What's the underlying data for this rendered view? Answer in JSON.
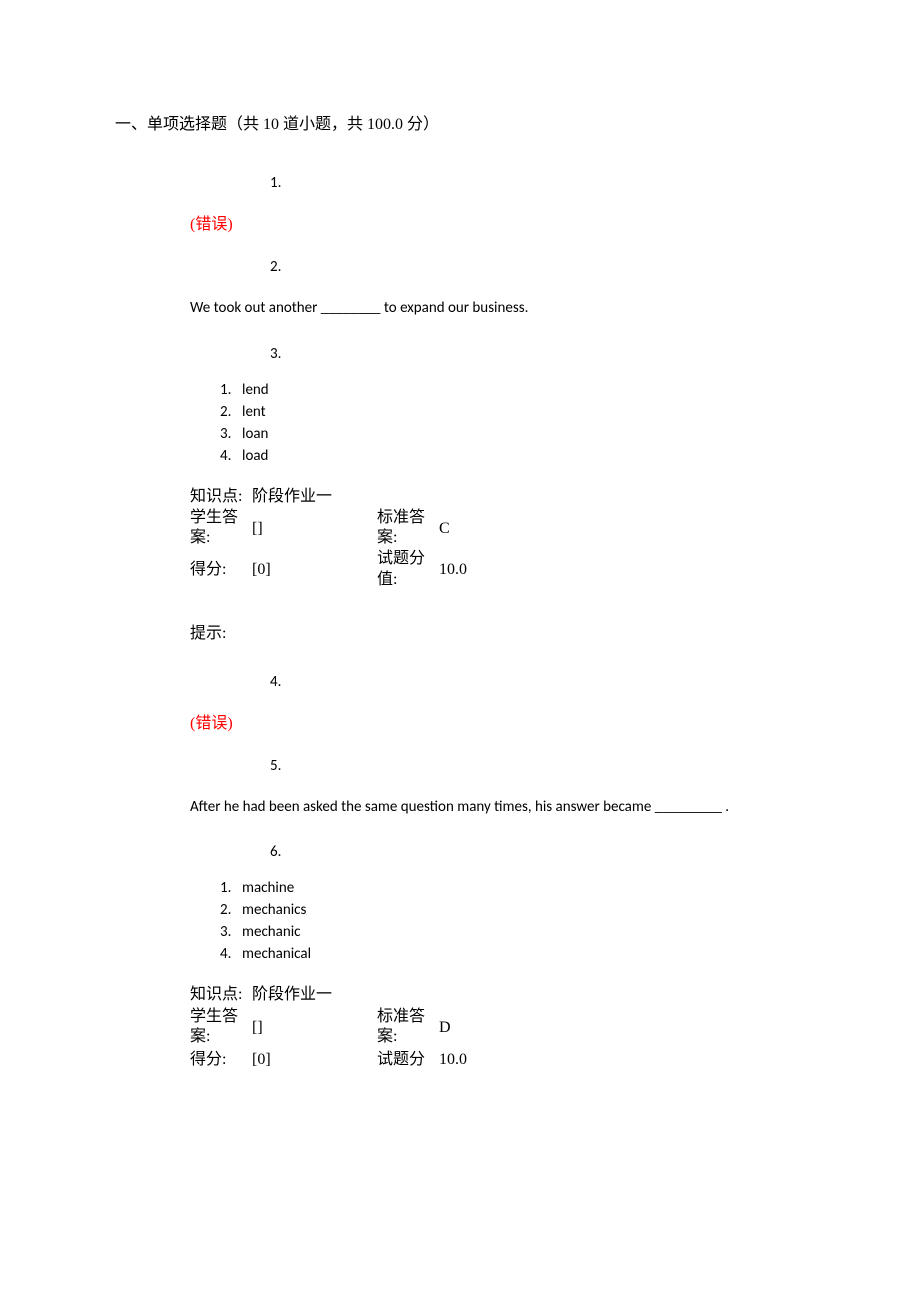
{
  "section_title": "一、单项选择题（共 10 道小题，共 100.0 分）",
  "error_label": "(错误)",
  "labels": {
    "knowledge": "知识点:",
    "student_answer": "学生答案:",
    "standard_answer": "标准答案:",
    "score": "得分:",
    "point_value": "试题分值:",
    "tip": "提示:"
  },
  "q1": {
    "marker1": "1.",
    "marker2": "2.",
    "text": "We took out another ________ to expand our business.",
    "marker3": "3.",
    "options": [
      {
        "n": "1.",
        "t": "lend"
      },
      {
        "n": "2.",
        "t": "lent"
      },
      {
        "n": "3.",
        "t": "loan"
      },
      {
        "n": "4.",
        "t": "load"
      }
    ],
    "knowledge": "阶段作业一",
    "student_answer": "[]",
    "standard_answer": "C",
    "score": "[0]",
    "point_value": "10.0"
  },
  "q2": {
    "marker1": "4.",
    "marker2": "5.",
    "text": "After he had been asked the same question many times, his answer became _________ .",
    "marker3": "6.",
    "options": [
      {
        "n": "1.",
        "t": "machine"
      },
      {
        "n": "2.",
        "t": "mechanics"
      },
      {
        "n": "3.",
        "t": "mechanic"
      },
      {
        "n": "4.",
        "t": "mechanical"
      }
    ],
    "knowledge": "阶段作业一",
    "student_answer": "[]",
    "standard_answer": "D",
    "score": "[0]",
    "point_value": "10.0"
  }
}
